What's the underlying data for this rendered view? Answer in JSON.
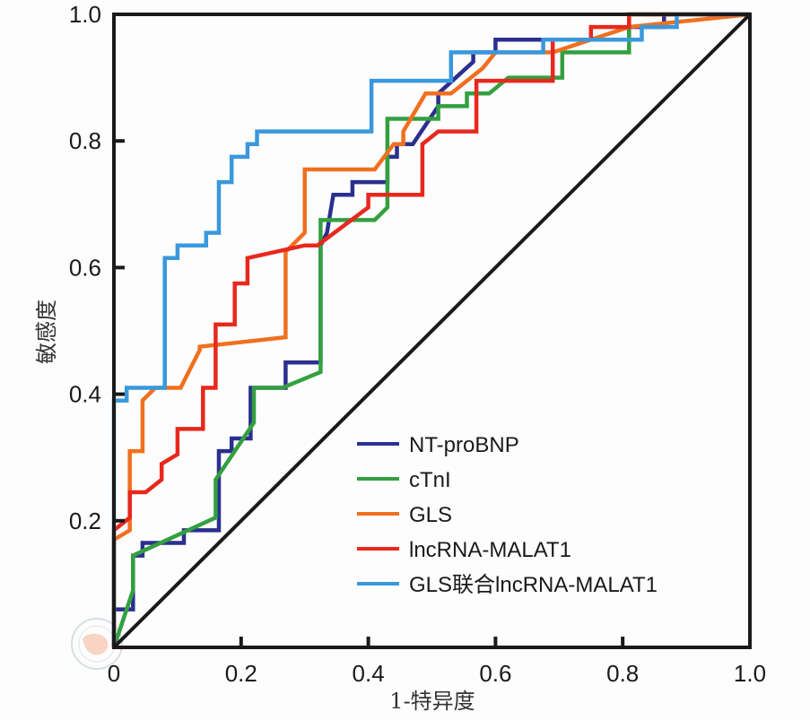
{
  "chart_data": {
    "type": "line",
    "title": "",
    "xlabel": "1-特异度",
    "ylabel": "敏感度",
    "xlim": [
      0,
      1.0
    ],
    "ylim": [
      0,
      1.0
    ],
    "xticks": [
      "0",
      "0.2",
      "0.4",
      "0.6",
      "0.8",
      "1.0"
    ],
    "yticks": [
      "0.2",
      "0.4",
      "0.6",
      "0.8",
      "1.0"
    ],
    "xtick_values": [
      0,
      0.2,
      0.4,
      0.6,
      0.8,
      1.0
    ],
    "ytick_values": [
      0.2,
      0.4,
      0.6,
      0.8,
      1.0
    ],
    "grid": false,
    "legend_position": "bottom-right",
    "reference_line": {
      "name": "diagonal",
      "points": [
        [
          0,
          0
        ],
        [
          1,
          1
        ]
      ],
      "color": "#1a1a1a"
    },
    "series": [
      {
        "name": "NT-proBNP",
        "color": "#2b2f8f",
        "points": [
          [
            0,
            0
          ],
          [
            0,
            0.06
          ],
          [
            0.03,
            0.06
          ],
          [
            0.03,
            0.145
          ],
          [
            0.045,
            0.145
          ],
          [
            0.045,
            0.165
          ],
          [
            0.11,
            0.165
          ],
          [
            0.11,
            0.185
          ],
          [
            0.165,
            0.185
          ],
          [
            0.165,
            0.31
          ],
          [
            0.185,
            0.31
          ],
          [
            0.185,
            0.33
          ],
          [
            0.215,
            0.33
          ],
          [
            0.215,
            0.41
          ],
          [
            0.27,
            0.41
          ],
          [
            0.27,
            0.45
          ],
          [
            0.325,
            0.45
          ],
          [
            0.325,
            0.635
          ],
          [
            0.335,
            0.655
          ],
          [
            0.345,
            0.715
          ],
          [
            0.375,
            0.715
          ],
          [
            0.375,
            0.735
          ],
          [
            0.43,
            0.735
          ],
          [
            0.43,
            0.775
          ],
          [
            0.445,
            0.775
          ],
          [
            0.445,
            0.795
          ],
          [
            0.47,
            0.795
          ],
          [
            0.51,
            0.855
          ],
          [
            0.51,
            0.875
          ],
          [
            0.565,
            0.925
          ],
          [
            0.565,
            0.94
          ],
          [
            0.6,
            0.94
          ],
          [
            0.6,
            0.96
          ],
          [
            0.81,
            0.96
          ],
          [
            0.81,
            0.98
          ],
          [
            0.865,
            0.98
          ],
          [
            0.865,
            1.0
          ],
          [
            1.0,
            1.0
          ]
        ]
      },
      {
        "name": "cTnI",
        "color": "#33a040",
        "points": [
          [
            0,
            0
          ],
          [
            0.03,
            0.09
          ],
          [
            0.03,
            0.145
          ],
          [
            0.16,
            0.205
          ],
          [
            0.16,
            0.265
          ],
          [
            0.22,
            0.355
          ],
          [
            0.22,
            0.41
          ],
          [
            0.265,
            0.41
          ],
          [
            0.325,
            0.435
          ],
          [
            0.325,
            0.675
          ],
          [
            0.41,
            0.675
          ],
          [
            0.43,
            0.695
          ],
          [
            0.43,
            0.835
          ],
          [
            0.51,
            0.835
          ],
          [
            0.51,
            0.855
          ],
          [
            0.555,
            0.855
          ],
          [
            0.555,
            0.875
          ],
          [
            0.59,
            0.875
          ],
          [
            0.62,
            0.9
          ],
          [
            0.705,
            0.9
          ],
          [
            0.705,
            0.94
          ],
          [
            0.81,
            0.94
          ],
          [
            0.81,
            1.0
          ],
          [
            1.0,
            1.0
          ]
        ]
      },
      {
        "name": "GLS",
        "color": "#f07020",
        "points": [
          [
            0,
            0
          ],
          [
            0,
            0.17
          ],
          [
            0.025,
            0.185
          ],
          [
            0.025,
            0.31
          ],
          [
            0.045,
            0.31
          ],
          [
            0.045,
            0.39
          ],
          [
            0.065,
            0.41
          ],
          [
            0.105,
            0.41
          ],
          [
            0.135,
            0.47
          ],
          [
            0.135,
            0.475
          ],
          [
            0.27,
            0.49
          ],
          [
            0.27,
            0.625
          ],
          [
            0.3,
            0.655
          ],
          [
            0.3,
            0.755
          ],
          [
            0.41,
            0.755
          ],
          [
            0.44,
            0.795
          ],
          [
            0.455,
            0.795
          ],
          [
            0.455,
            0.815
          ],
          [
            0.49,
            0.875
          ],
          [
            0.53,
            0.875
          ],
          [
            0.58,
            0.915
          ],
          [
            0.6,
            0.94
          ],
          [
            0.69,
            0.94
          ],
          [
            0.81,
            0.98
          ],
          [
            1.0,
            1.0
          ]
        ]
      },
      {
        "name": "lncRNA-MALAT1",
        "color": "#e8281e",
        "points": [
          [
            0,
            0
          ],
          [
            0,
            0.185
          ],
          [
            0.025,
            0.205
          ],
          [
            0.025,
            0.245
          ],
          [
            0.05,
            0.245
          ],
          [
            0.075,
            0.265
          ],
          [
            0.075,
            0.29
          ],
          [
            0.1,
            0.305
          ],
          [
            0.1,
            0.345
          ],
          [
            0.14,
            0.345
          ],
          [
            0.14,
            0.41
          ],
          [
            0.16,
            0.41
          ],
          [
            0.16,
            0.51
          ],
          [
            0.19,
            0.51
          ],
          [
            0.19,
            0.575
          ],
          [
            0.21,
            0.575
          ],
          [
            0.21,
            0.615
          ],
          [
            0.3,
            0.635
          ],
          [
            0.32,
            0.635
          ],
          [
            0.4,
            0.695
          ],
          [
            0.4,
            0.715
          ],
          [
            0.485,
            0.715
          ],
          [
            0.485,
            0.795
          ],
          [
            0.51,
            0.815
          ],
          [
            0.57,
            0.815
          ],
          [
            0.57,
            0.895
          ],
          [
            0.69,
            0.895
          ],
          [
            0.69,
            0.96
          ],
          [
            0.75,
            0.96
          ],
          [
            0.75,
            0.98
          ],
          [
            0.81,
            0.98
          ],
          [
            0.81,
            1.0
          ],
          [
            1.0,
            1.0
          ]
        ]
      },
      {
        "name": "GLS联合lncRNA-MALAT1",
        "color": "#3a98dc",
        "points": [
          [
            0,
            0
          ],
          [
            0,
            0.39
          ],
          [
            0.02,
            0.39
          ],
          [
            0.02,
            0.41
          ],
          [
            0.08,
            0.41
          ],
          [
            0.08,
            0.615
          ],
          [
            0.1,
            0.615
          ],
          [
            0.1,
            0.635
          ],
          [
            0.145,
            0.635
          ],
          [
            0.145,
            0.655
          ],
          [
            0.165,
            0.655
          ],
          [
            0.165,
            0.735
          ],
          [
            0.185,
            0.735
          ],
          [
            0.185,
            0.775
          ],
          [
            0.21,
            0.775
          ],
          [
            0.21,
            0.795
          ],
          [
            0.225,
            0.795
          ],
          [
            0.225,
            0.815
          ],
          [
            0.405,
            0.815
          ],
          [
            0.405,
            0.895
          ],
          [
            0.53,
            0.895
          ],
          [
            0.53,
            0.94
          ],
          [
            0.675,
            0.94
          ],
          [
            0.675,
            0.96
          ],
          [
            0.83,
            0.96
          ],
          [
            0.83,
            0.98
          ],
          [
            0.885,
            0.98
          ],
          [
            0.885,
            1.0
          ],
          [
            1.0,
            1.0
          ]
        ]
      }
    ]
  }
}
